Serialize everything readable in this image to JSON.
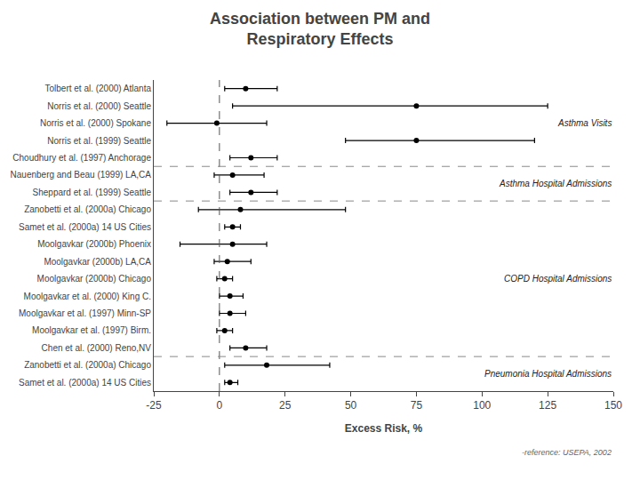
{
  "chart_data": {
    "type": "forest",
    "title": "Association between PM and\nRespiratory Effects",
    "xlabel": "Excess Risk, %",
    "xlim": [
      -25,
      150
    ],
    "xticks": [
      -25,
      0,
      25,
      50,
      75,
      100,
      125,
      150
    ],
    "grid": false,
    "color": "#000000",
    "vline": 0,
    "categories": [
      "Tolbert et al. (2000) Atlanta",
      "Norris et al. (2000) Seattle",
      "Norris et al. (2000) Spokane",
      "Norris et al. (1999) Seattle",
      "Choudhury et al. (1997) Anchorage",
      "Nauenberg and Beau (1999) LA,CA",
      "Sheppard et al. (1999) Seattle",
      "Zanobetti et al. (2000a) Chicago",
      "Samet et al. (2000a) 14 US Cities",
      "Moolgavkar (2000b) Phoenix",
      "Moolgavkar (2000b) LA,CA",
      "Moolgavkar (2000b) Chicago",
      "Moolgavkar et al. (2000) King C.",
      "Moolgavkar et al. (1997) Minn-SP",
      "Moolgavkar et al. (1997) Birm.",
      "Chen et al. (2000) Reno,NV",
      "Zanobetti et al. (2000a) Chicago",
      "Samet et al. (2000a) 14 US Cities"
    ],
    "values": [
      10,
      75,
      -1,
      75,
      12,
      5,
      12,
      8,
      5,
      5,
      3,
      2,
      4,
      4,
      2,
      10,
      18,
      4
    ],
    "lo": [
      2,
      5,
      -20,
      48,
      4,
      -2,
      4,
      -8,
      2,
      -15,
      -2,
      -1,
      0,
      0,
      -1,
      4,
      2,
      2
    ],
    "hi": [
      22,
      125,
      18,
      120,
      22,
      17,
      22,
      48,
      8,
      18,
      12,
      5,
      9,
      10,
      5,
      18,
      42,
      7
    ],
    "annotations": [
      {
        "text": "Asthma Visits",
        "rows": [
          0,
          4
        ]
      },
      {
        "text": "Asthma Hospital Admissions",
        "rows": [
          5,
          6
        ]
      },
      {
        "text": "COPD Hospital Admissions",
        "rows": [
          7,
          15
        ]
      },
      {
        "text": "Pneumonia Hospital Admissions",
        "rows": [
          16,
          17
        ]
      },
      {
        "text": "-reference: USEPA, 2002"
      }
    ]
  }
}
